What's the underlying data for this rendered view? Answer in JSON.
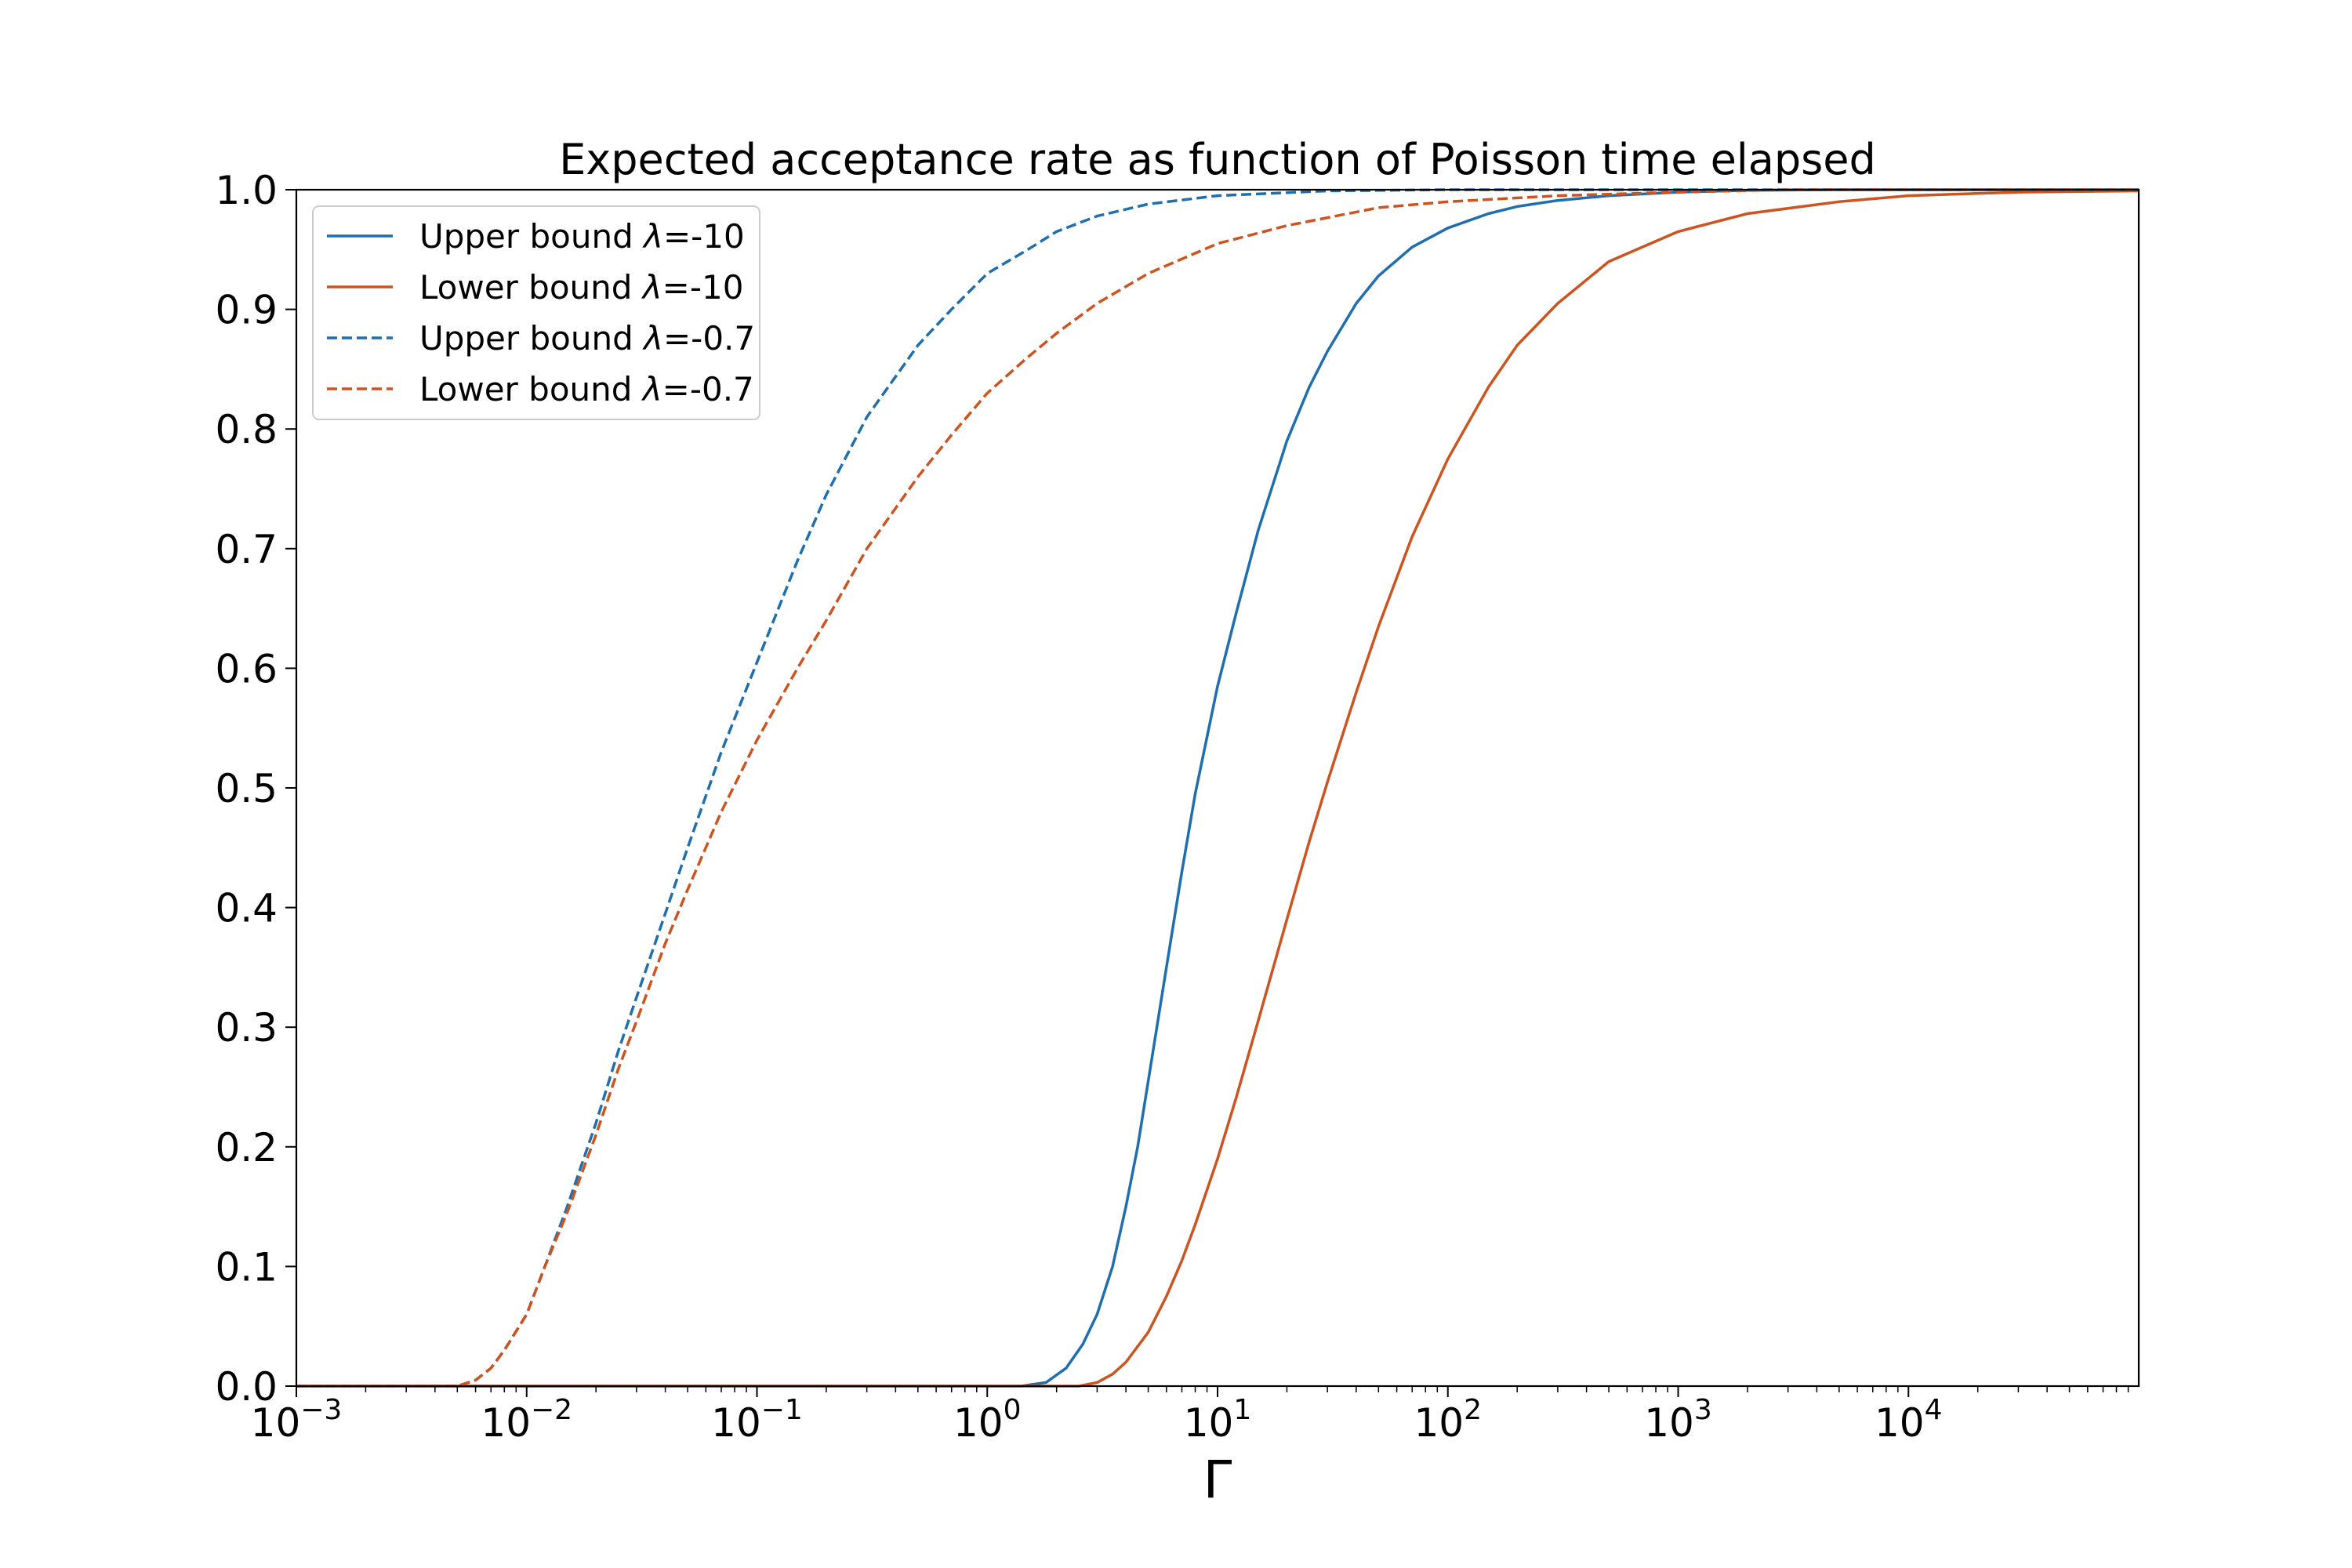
{
  "chart_data": {
    "type": "line",
    "title": "Expected acceptance rate as function of Poisson time elapsed",
    "xlabel": "Γ",
    "ylabel": "",
    "xscale": "log",
    "xlim": [
      0.001,
      100000
    ],
    "ylim": [
      0.0,
      1.0
    ],
    "grid": false,
    "legend_position": "upper-left",
    "x_ticks": [
      {
        "value": 0.001,
        "base": "10",
        "exp": "−3"
      },
      {
        "value": 0.01,
        "base": "10",
        "exp": "−2"
      },
      {
        "value": 0.1,
        "base": "10",
        "exp": "−1"
      },
      {
        "value": 1,
        "base": "10",
        "exp": "0"
      },
      {
        "value": 10,
        "base": "10",
        "exp": "1"
      },
      {
        "value": 100,
        "base": "10",
        "exp": "2"
      },
      {
        "value": 1000,
        "base": "10",
        "exp": "3"
      },
      {
        "value": 10000,
        "base": "10",
        "exp": "4"
      }
    ],
    "y_ticks": [
      {
        "value": 0.0,
        "label": "0.0"
      },
      {
        "value": 0.1,
        "label": "0.1"
      },
      {
        "value": 0.2,
        "label": "0.2"
      },
      {
        "value": 0.3,
        "label": "0.3"
      },
      {
        "value": 0.4,
        "label": "0.4"
      },
      {
        "value": 0.5,
        "label": "0.5"
      },
      {
        "value": 0.6,
        "label": "0.6"
      },
      {
        "value": 0.7,
        "label": "0.7"
      },
      {
        "value": 0.8,
        "label": "0.8"
      },
      {
        "value": 0.9,
        "label": "0.9"
      },
      {
        "value": 1.0,
        "label": "1.0"
      }
    ],
    "series": [
      {
        "name": "Upper bound λ=-10",
        "legend_prefix": "Upper bound ",
        "legend_symbol": "λ",
        "legend_suffix": "=-10",
        "color": "#1f6fae",
        "style": "solid",
        "points": [
          [
            0.001,
            0.0
          ],
          [
            1.4,
            0.0
          ],
          [
            1.8,
            0.003
          ],
          [
            2.2,
            0.015
          ],
          [
            2.6,
            0.035
          ],
          [
            3.0,
            0.06
          ],
          [
            3.5,
            0.1
          ],
          [
            4.0,
            0.15
          ],
          [
            4.5,
            0.2
          ],
          [
            5.0,
            0.255
          ],
          [
            6.0,
            0.35
          ],
          [
            7.0,
            0.43
          ],
          [
            8.0,
            0.495
          ],
          [
            10.0,
            0.585
          ],
          [
            12.0,
            0.645
          ],
          [
            15.0,
            0.715
          ],
          [
            20.0,
            0.79
          ],
          [
            25.0,
            0.835
          ],
          [
            30.0,
            0.865
          ],
          [
            40.0,
            0.905
          ],
          [
            50.0,
            0.928
          ],
          [
            70.0,
            0.952
          ],
          [
            100.0,
            0.968
          ],
          [
            150.0,
            0.98
          ],
          [
            200.0,
            0.986
          ],
          [
            300.0,
            0.991
          ],
          [
            500.0,
            0.995
          ],
          [
            1000.0,
            0.998
          ],
          [
            2000.0,
            0.9995
          ],
          [
            5000.0,
            1.0
          ],
          [
            100000.0,
            1.0
          ]
        ]
      },
      {
        "name": "Lower bound λ=-10",
        "legend_prefix": "Lower bound ",
        "legend_symbol": "λ",
        "legend_suffix": "=-10",
        "color": "#cc5420",
        "style": "solid",
        "points": [
          [
            0.001,
            0.0
          ],
          [
            2.5,
            0.0
          ],
          [
            3.0,
            0.003
          ],
          [
            3.5,
            0.01
          ],
          [
            4.0,
            0.02
          ],
          [
            5.0,
            0.045
          ],
          [
            6.0,
            0.075
          ],
          [
            7.0,
            0.105
          ],
          [
            8.0,
            0.135
          ],
          [
            10.0,
            0.19
          ],
          [
            12.0,
            0.24
          ],
          [
            15.0,
            0.305
          ],
          [
            20.0,
            0.39
          ],
          [
            25.0,
            0.455
          ],
          [
            30.0,
            0.505
          ],
          [
            40.0,
            0.58
          ],
          [
            50.0,
            0.635
          ],
          [
            70.0,
            0.71
          ],
          [
            100.0,
            0.775
          ],
          [
            150.0,
            0.835
          ],
          [
            200.0,
            0.87
          ],
          [
            300.0,
            0.905
          ],
          [
            500.0,
            0.94
          ],
          [
            1000.0,
            0.965
          ],
          [
            2000.0,
            0.98
          ],
          [
            5000.0,
            0.99
          ],
          [
            10000.0,
            0.995
          ],
          [
            30000.0,
            0.998
          ],
          [
            100000.0,
            0.999
          ]
        ]
      },
      {
        "name": "Upper bound λ=-0.7",
        "legend_prefix": "Upper bound ",
        "legend_symbol": "λ",
        "legend_suffix": "=-0.7",
        "color": "#1f6fae",
        "style": "dashed",
        "points": [
          [
            0.001,
            0.0
          ],
          [
            0.005,
            0.0
          ],
          [
            0.006,
            0.005
          ],
          [
            0.007,
            0.015
          ],
          [
            0.008,
            0.03
          ],
          [
            0.01,
            0.06
          ],
          [
            0.012,
            0.1
          ],
          [
            0.015,
            0.15
          ],
          [
            0.02,
            0.22
          ],
          [
            0.025,
            0.28
          ],
          [
            0.03,
            0.325
          ],
          [
            0.04,
            0.395
          ],
          [
            0.05,
            0.45
          ],
          [
            0.07,
            0.53
          ],
          [
            0.1,
            0.605
          ],
          [
            0.15,
            0.69
          ],
          [
            0.2,
            0.745
          ],
          [
            0.3,
            0.81
          ],
          [
            0.5,
            0.87
          ],
          [
            0.7,
            0.9
          ],
          [
            1.0,
            0.93
          ],
          [
            1.5,
            0.95
          ],
          [
            2.0,
            0.965
          ],
          [
            3.0,
            0.978
          ],
          [
            5.0,
            0.988
          ],
          [
            10.0,
            0.995
          ],
          [
            30.0,
            0.999
          ],
          [
            100.0,
            1.0
          ],
          [
            100000.0,
            1.0
          ]
        ]
      },
      {
        "name": "Lower bound λ=-0.7",
        "legend_prefix": "Lower bound ",
        "legend_symbol": "λ",
        "legend_suffix": "=-0.7",
        "color": "#cc5420",
        "style": "dashed",
        "points": [
          [
            0.001,
            0.0
          ],
          [
            0.005,
            0.0
          ],
          [
            0.006,
            0.005
          ],
          [
            0.007,
            0.015
          ],
          [
            0.008,
            0.03
          ],
          [
            0.01,
            0.06
          ],
          [
            0.012,
            0.1
          ],
          [
            0.015,
            0.145
          ],
          [
            0.02,
            0.21
          ],
          [
            0.025,
            0.265
          ],
          [
            0.03,
            0.305
          ],
          [
            0.04,
            0.37
          ],
          [
            0.05,
            0.415
          ],
          [
            0.07,
            0.48
          ],
          [
            0.1,
            0.54
          ],
          [
            0.15,
            0.6
          ],
          [
            0.2,
            0.64
          ],
          [
            0.3,
            0.7
          ],
          [
            0.5,
            0.76
          ],
          [
            0.7,
            0.795
          ],
          [
            1.0,
            0.83
          ],
          [
            1.5,
            0.86
          ],
          [
            2.0,
            0.88
          ],
          [
            3.0,
            0.905
          ],
          [
            5.0,
            0.93
          ],
          [
            10.0,
            0.955
          ],
          [
            20.0,
            0.97
          ],
          [
            50.0,
            0.985
          ],
          [
            100.0,
            0.99
          ],
          [
            300.0,
            0.995
          ],
          [
            1000.0,
            0.998
          ],
          [
            3000.0,
            1.0
          ],
          [
            100000.0,
            1.0
          ]
        ]
      }
    ]
  }
}
